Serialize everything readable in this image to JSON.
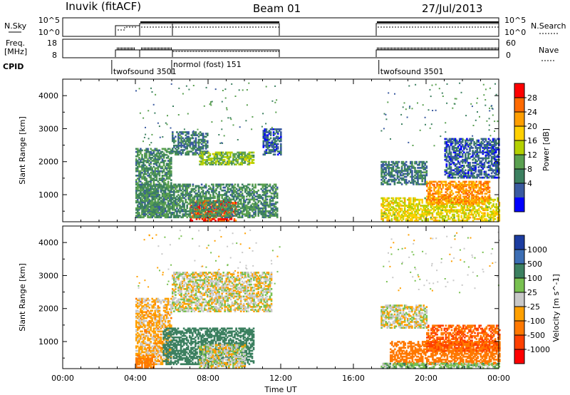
{
  "header": {
    "radar": "Inuvik (fitACF)",
    "beam": "Beam 01",
    "date": "27/Jul/2013"
  },
  "top_panels": {
    "nsky_label": "N.Sky",
    "nsky_ticks": [
      "10^5",
      "10^0"
    ],
    "nsearch_label": "N.Search",
    "nsearch_ticks": [
      "10^5",
      "10^0"
    ],
    "freq_label": "Freq.",
    "freq_unit": "[MHz]",
    "freq_ticks": [
      "18",
      "8"
    ],
    "nave_label": "Nave",
    "nave_ticks": [
      "60",
      "0"
    ],
    "cpid_label": "CPID",
    "cpid_segments": [
      {
        "start_h": 2.7,
        "label": "twofsound 3501"
      },
      {
        "start_h": 6.0,
        "label": "normol (fost) 151"
      },
      {
        "start_h": 17.4,
        "label": "twofsound 3501"
      }
    ]
  },
  "x_axis": {
    "label": "Time UT",
    "ticks": [
      "00:00",
      "04:00",
      "08:00",
      "12:00",
      "16:00",
      "20:00",
      "00:00"
    ]
  },
  "power_colorbar": {
    "label": "Power [dB]",
    "ticks": [
      "28",
      "24",
      "20",
      "16",
      "12",
      "8",
      "4"
    ],
    "colors": [
      "#ff0000",
      "#ff6a00",
      "#ff9e00",
      "#ffd000",
      "#b4d000",
      "#5aa050",
      "#3c8060",
      "#3a5aa0",
      "#0000ff"
    ]
  },
  "velocity_colorbar": {
    "label": "Velocity [m s^-1]",
    "ticks": [
      "1000",
      "500",
      "100",
      "25",
      "-25",
      "-100",
      "-500",
      "-1000"
    ],
    "colors": [
      "#1c3ca0",
      "#3c6eb4",
      "#3c8060",
      "#78c050",
      "#c8c8c8",
      "#ffa000",
      "#ff7800",
      "#ff4000",
      "#ff0000"
    ]
  },
  "chart_data": [
    {
      "type": "heatmap",
      "title": "",
      "xlabel": "Time UT",
      "ylabel": "Slant Range [km]",
      "xlim": [
        0,
        24
      ],
      "ylim": [
        180,
        4500
      ],
      "yticks": [
        1000,
        2000,
        3000,
        4000
      ],
      "value_label": "Power [dB]",
      "value_range": [
        0,
        32
      ],
      "data_windows_h": [
        [
          4.0,
          12.0
        ],
        [
          17.5,
          24.0
        ]
      ],
      "regions": [
        {
          "t": [
            4.0,
            6.0
          ],
          "r": [
            300,
            2400
          ],
          "value": 10
        },
        {
          "t": [
            6.0,
            8.0
          ],
          "r": [
            2200,
            2900
          ],
          "value": 8
        },
        {
          "t": [
            7.5,
            10.5
          ],
          "r": [
            1900,
            2300
          ],
          "value": 14
        },
        {
          "t": [
            7.0,
            9.5
          ],
          "r": [
            200,
            800
          ],
          "value": 28
        },
        {
          "t": [
            4.0,
            11.8
          ],
          "r": [
            300,
            1300
          ],
          "value": 10
        },
        {
          "t": [
            11.0,
            12.0
          ],
          "r": [
            2200,
            3000
          ],
          "value": 6
        },
        {
          "t": [
            17.5,
            20.0
          ],
          "r": [
            1300,
            2000
          ],
          "value": 8
        },
        {
          "t": [
            17.5,
            24.0
          ],
          "r": [
            200,
            900
          ],
          "value": 18
        },
        {
          "t": [
            20.0,
            23.5
          ],
          "r": [
            700,
            1400
          ],
          "value": 24
        },
        {
          "t": [
            21.0,
            24.0
          ],
          "r": [
            1500,
            2700
          ],
          "value": 6
        }
      ]
    },
    {
      "type": "heatmap",
      "title": "",
      "xlabel": "Time UT",
      "ylabel": "Slant Range [km]",
      "xlim": [
        0,
        24
      ],
      "ylim": [
        180,
        4500
      ],
      "yticks": [
        1000,
        2000,
        3000,
        4000
      ],
      "value_label": "Velocity [m s^-1]",
      "value_range": [
        -1000,
        1000
      ],
      "data_windows_h": [
        [
          4.0,
          12.0
        ],
        [
          17.5,
          24.0
        ]
      ],
      "regions": [
        {
          "t": [
            6.0,
            11.5
          ],
          "r": [
            1900,
            3100
          ],
          "value": 0
        },
        {
          "t": [
            4.0,
            6.0
          ],
          "r": [
            300,
            2300
          ],
          "value": -50
        },
        {
          "t": [
            5.5,
            10.5
          ],
          "r": [
            300,
            1400
          ],
          "value": 200
        },
        {
          "t": [
            7.5,
            10.0
          ],
          "r": [
            200,
            900
          ],
          "value": 0
        },
        {
          "t": [
            4.0,
            5.0
          ],
          "r": [
            200,
            600
          ],
          "value": -150
        },
        {
          "t": [
            17.5,
            20.0
          ],
          "r": [
            1400,
            2100
          ],
          "value": 0
        },
        {
          "t": [
            18.0,
            24.0
          ],
          "r": [
            300,
            1000
          ],
          "value": -300
        },
        {
          "t": [
            20.0,
            24.0
          ],
          "r": [
            700,
            1500
          ],
          "value": -500
        },
        {
          "t": [
            17.5,
            24.0
          ],
          "r": [
            180,
            350
          ],
          "value": 60
        }
      ]
    }
  ]
}
